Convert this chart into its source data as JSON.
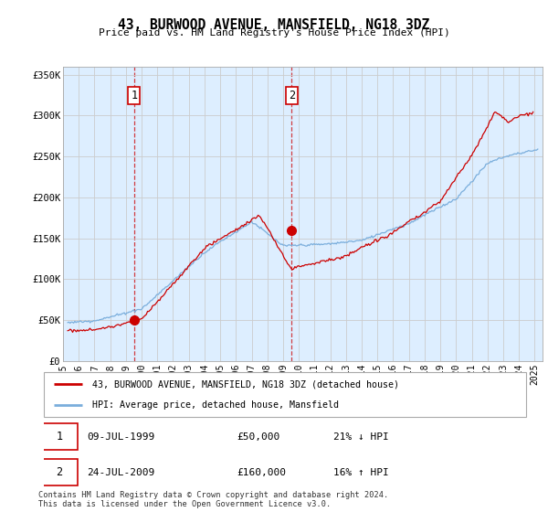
{
  "title": "43, BURWOOD AVENUE, MANSFIELD, NG18 3DZ",
  "subtitle": "Price paid vs. HM Land Registry's House Price Index (HPI)",
  "ylabel_ticks": [
    "£0",
    "£50K",
    "£100K",
    "£150K",
    "£200K",
    "£250K",
    "£300K",
    "£350K"
  ],
  "ytick_values": [
    0,
    50000,
    100000,
    150000,
    200000,
    250000,
    300000,
    350000
  ],
  "ylim": [
    0,
    360000
  ],
  "xlim_start": 1995.3,
  "xlim_end": 2025.5,
  "red_line_color": "#cc0000",
  "blue_line_color": "#7aaedc",
  "grid_color": "#cccccc",
  "bg_color": "#ddeeff",
  "sale1_x": 1999.52,
  "sale1_y": 50000,
  "sale2_x": 2009.55,
  "sale2_y": 160000,
  "legend_line1": "43, BURWOOD AVENUE, MANSFIELD, NG18 3DZ (detached house)",
  "legend_line2": "HPI: Average price, detached house, Mansfield",
  "sale1_date": "09-JUL-1999",
  "sale1_price": "£50,000",
  "sale1_hpi": "21% ↓ HPI",
  "sale2_date": "24-JUL-2009",
  "sale2_price": "£160,000",
  "sale2_hpi": "16% ↑ HPI",
  "footer": "Contains HM Land Registry data © Crown copyright and database right 2024.\nThis data is licensed under the Open Government Licence v3.0.",
  "xticks": [
    1995,
    1996,
    1997,
    1998,
    1999,
    2000,
    2001,
    2002,
    2003,
    2004,
    2005,
    2006,
    2007,
    2008,
    2009,
    2010,
    2011,
    2012,
    2013,
    2014,
    2015,
    2016,
    2017,
    2018,
    2019,
    2020,
    2021,
    2022,
    2023,
    2024,
    2025
  ]
}
